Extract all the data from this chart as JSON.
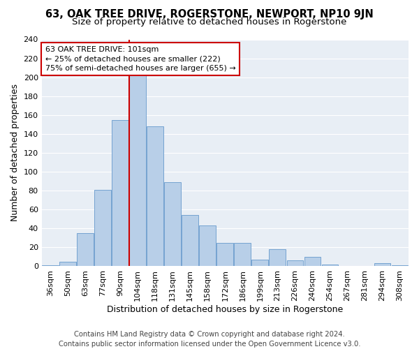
{
  "title1": "63, OAK TREE DRIVE, ROGERSTONE, NEWPORT, NP10 9JN",
  "title2": "Size of property relative to detached houses in Rogerstone",
  "xlabel": "Distribution of detached houses by size in Rogerstone",
  "ylabel": "Number of detached properties",
  "categories": [
    "36sqm",
    "50sqm",
    "63sqm",
    "77sqm",
    "90sqm",
    "104sqm",
    "118sqm",
    "131sqm",
    "145sqm",
    "158sqm",
    "172sqm",
    "186sqm",
    "199sqm",
    "213sqm",
    "226sqm",
    "240sqm",
    "254sqm",
    "267sqm",
    "281sqm",
    "294sqm",
    "308sqm"
  ],
  "values": [
    1,
    5,
    35,
    81,
    155,
    202,
    148,
    89,
    54,
    43,
    25,
    25,
    7,
    18,
    6,
    10,
    2,
    0,
    0,
    3,
    1
  ],
  "bar_color": "#b8cfe8",
  "bar_edge_color": "#6699cc",
  "vline_color": "#cc0000",
  "annotation_line1": "63 OAK TREE DRIVE: 101sqm",
  "annotation_line2": "← 25% of detached houses are smaller (222)",
  "annotation_line3": "75% of semi-detached houses are larger (655) →",
  "annotation_box_color": "white",
  "annotation_box_edge": "#cc0000",
  "bg_color": "#e8eef5",
  "grid_color": "#ffffff",
  "footnote1": "Contains HM Land Registry data © Crown copyright and database right 2024.",
  "footnote2": "Contains public sector information licensed under the Open Government Licence v3.0.",
  "ylim_max": 240,
  "yticks": [
    0,
    20,
    40,
    60,
    80,
    100,
    120,
    140,
    160,
    180,
    200,
    220,
    240
  ],
  "title1_fontsize": 10.5,
  "title2_fontsize": 9.5,
  "tick_fontsize": 8,
  "ylabel_fontsize": 9,
  "xlabel_fontsize": 9,
  "footnote_fontsize": 7.2,
  "vline_bar_index": 5
}
